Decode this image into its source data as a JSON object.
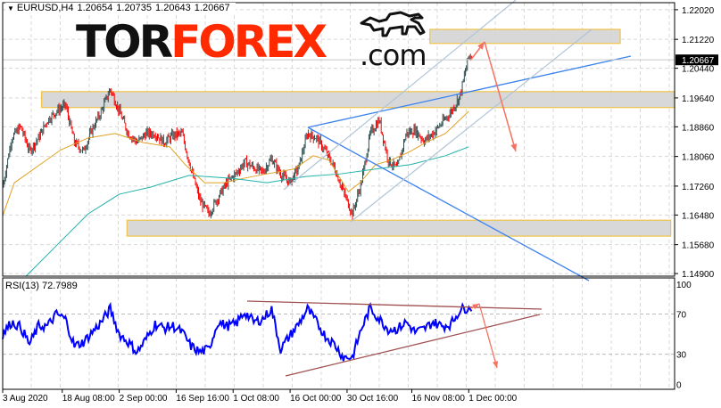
{
  "header": {
    "symbol": "EURUSD,H4",
    "open": "1.20654",
    "high": "1.20735",
    "low": "1.20643",
    "close": "1.20667"
  },
  "logo": {
    "part1": "TOR",
    "part2": "FOREX",
    "part3": ".com"
  },
  "indicator": {
    "label": "RSI(13)",
    "value": "72.7989"
  },
  "current_price_label": "1.20667",
  "colors": {
    "bull_candle": "#2f4f4f",
    "bear_candle": "#ff0000",
    "ma_fast": "#e0a020",
    "ma_slow": "#20b2aa",
    "rsi_line": "#0000ff",
    "trendline": "#3c82f0",
    "channel": "#b0c4d8",
    "zone_fill": "#d6d6d6",
    "zone_border": "#f0c040",
    "arrow": "#f87060",
    "rsi_trendline": "#a05050",
    "logo_red": "#ff2a00"
  },
  "chart_data": [
    {
      "type": "candlestick",
      "title": "",
      "x_range": [
        "2020-08-03T00:00",
        "2021-01-23T00:00"
      ],
      "ylim": [
        1.1483,
        1.2221
      ],
      "y_ticks": [
        "1.22020",
        "1.21220",
        "1.20440",
        "1.19640",
        "1.18860",
        "1.18060",
        "1.17260",
        "1.16480",
        "1.15680",
        "1.14900"
      ],
      "x_ticks": [
        "3 Aug 2020",
        "18 Aug 08:00",
        "2 Sep 00:00",
        "16 Sep 16:00",
        "1 Oct 08:00",
        "16 Oct 00:00",
        "30 Oct 16:00",
        "16 Nov 08:00",
        "1 Dec 00:00"
      ],
      "x_tick_dates": [
        "2020-08-03T00:00",
        "2020-08-18T08:00",
        "2020-09-02T00:00",
        "2020-09-16T16:00",
        "2020-10-01T08:00",
        "2020-10-16T00:00",
        "2020-10-30T16:00",
        "2020-11-16T08:00",
        "2020-12-01T00:00"
      ],
      "grid": true,
      "close_samples": {
        "start": "2020-08-03T00:00",
        "step_hours": 55.4,
        "values": [
          1.1723,
          1.1856,
          1.1887,
          1.182,
          1.1856,
          1.1904,
          1.1928,
          1.1945,
          1.1844,
          1.182,
          1.188,
          1.1928,
          1.1988,
          1.1928,
          1.1868,
          1.1844,
          1.1868,
          1.1868,
          1.1844,
          1.1863,
          1.1868,
          1.1772,
          1.1687,
          1.1651,
          1.1695,
          1.1735,
          1.1759,
          1.1791,
          1.1776,
          1.1764,
          1.18,
          1.1759,
          1.1735,
          1.1776,
          1.1868,
          1.1856,
          1.182,
          1.1776,
          1.1711,
          1.1651,
          1.1735,
          1.1868,
          1.1904,
          1.1796,
          1.1772,
          1.1868,
          1.1877,
          1.1848,
          1.1868,
          1.1897,
          1.1926,
          1.1969,
          1.2079
        ]
      },
      "last_close": 1.20667,
      "ma_fast": [
        [
          "2020-08-03",
          1.1646
        ],
        [
          "2020-08-06",
          1.1735
        ],
        [
          "2020-08-11",
          1.1772
        ],
        [
          "2020-08-18",
          1.1824
        ],
        [
          "2020-08-25",
          1.1856
        ],
        [
          "2020-09-01",
          1.1868
        ],
        [
          "2020-09-08",
          1.1844
        ],
        [
          "2020-09-15",
          1.1832
        ],
        [
          "2020-09-19",
          1.1784
        ],
        [
          "2020-09-24",
          1.1735
        ],
        [
          "2020-09-29",
          1.1735
        ],
        [
          "2020-10-04",
          1.1747
        ],
        [
          "2020-10-10",
          1.1759
        ],
        [
          "2020-10-17",
          1.1772
        ],
        [
          "2020-10-22",
          1.1808
        ],
        [
          "2020-10-26",
          1.1796
        ],
        [
          "2020-10-31",
          1.1711
        ],
        [
          "2020-11-03",
          1.1735
        ],
        [
          "2020-11-07",
          1.1784
        ],
        [
          "2020-11-11",
          1.1796
        ],
        [
          "2020-11-16",
          1.182
        ],
        [
          "2020-11-20",
          1.1844
        ],
        [
          "2020-11-25",
          1.1868
        ],
        [
          "2020-12-01",
          1.1928
        ]
      ],
      "ma_slow": [
        [
          "2020-08-09",
          1.1483
        ],
        [
          "2020-08-17",
          1.1567
        ],
        [
          "2020-08-25",
          1.1651
        ],
        [
          "2020-09-02",
          1.1704
        ],
        [
          "2020-09-10",
          1.1723
        ],
        [
          "2020-09-20",
          1.1755
        ],
        [
          "2020-10-01",
          1.1747
        ],
        [
          "2020-10-10",
          1.1735
        ],
        [
          "2020-10-20",
          1.1752
        ],
        [
          "2020-10-29",
          1.1759
        ],
        [
          "2020-11-07",
          1.1772
        ],
        [
          "2020-11-16",
          1.1784
        ],
        [
          "2020-11-25",
          1.1808
        ],
        [
          "2020-12-01",
          1.1832
        ]
      ],
      "zones": [
        {
          "from": "2020-08-13",
          "to": "2021-01-23",
          "low": 1.1938,
          "high": 1.1981
        },
        {
          "from": "2020-11-21",
          "to": "2021-01-09",
          "low": 1.2111,
          "high": 1.2149
        },
        {
          "from": "2020-09-04",
          "to": "2021-01-22",
          "low": 1.1591,
          "high": 1.1634
        }
      ]
    },
    {
      "type": "line",
      "name": "RSI(13)",
      "ylim": [
        -5,
        106
      ],
      "y_ticks": [
        "100",
        "70",
        "30",
        "0"
      ],
      "y_tick_values": [
        100,
        70,
        30,
        0
      ],
      "levels": [
        70,
        30
      ],
      "samples": {
        "start": "2020-08-03T00:00",
        "step_hours": 55.4,
        "values": [
          50,
          62,
          57,
          40,
          58,
          58,
          70,
          65,
          38,
          42,
          52,
          62,
          75,
          50,
          42,
          32,
          45,
          60,
          56,
          58,
          52,
          38,
          32,
          35,
          62,
          58,
          60,
          72,
          62,
          65,
          75,
          35,
          48,
          60,
          75,
          62,
          48,
          40,
          27,
          27,
          55,
          76,
          65,
          55,
          55,
          62,
          52,
          55,
          62,
          58,
          60,
          74,
          77
        ]
      },
      "last_value": 72.7989
    }
  ]
}
